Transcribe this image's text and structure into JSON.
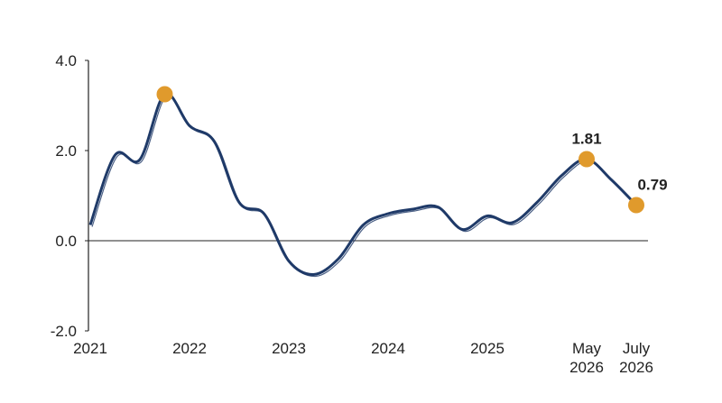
{
  "chart_data": {
    "type": "line",
    "categories": [
      "2021",
      null,
      null,
      null,
      "2022",
      null,
      null,
      null,
      "2023",
      null,
      null,
      null,
      "2024",
      null,
      null,
      null,
      "2025",
      null,
      null,
      null,
      "May 2026",
      null,
      "July 2026"
    ],
    "series": [
      {
        "color": "#1f3a68",
        "values": [
          0.35,
          1.9,
          1.8,
          3.25,
          2.55,
          2.2,
          0.85,
          0.6,
          -0.45,
          -0.75,
          -0.4,
          0.35,
          0.6,
          0.7,
          0.75,
          0.25,
          0.55,
          0.4,
          0.85,
          1.45,
          1.81,
          1.35,
          0.79
        ]
      }
    ],
    "markers": [
      3,
      20,
      22
    ],
    "marker_color": "#e09a2c",
    "data_labels": [
      20,
      22
    ],
    "ylim": [
      -2,
      4
    ],
    "yticks": [
      {
        "value": -2,
        "label": "-2.0"
      },
      {
        "value": 0,
        "label": "0.0"
      },
      {
        "value": 2,
        "label": "2.0"
      },
      {
        "value": 4,
        "label": "4.0"
      }
    ]
  }
}
